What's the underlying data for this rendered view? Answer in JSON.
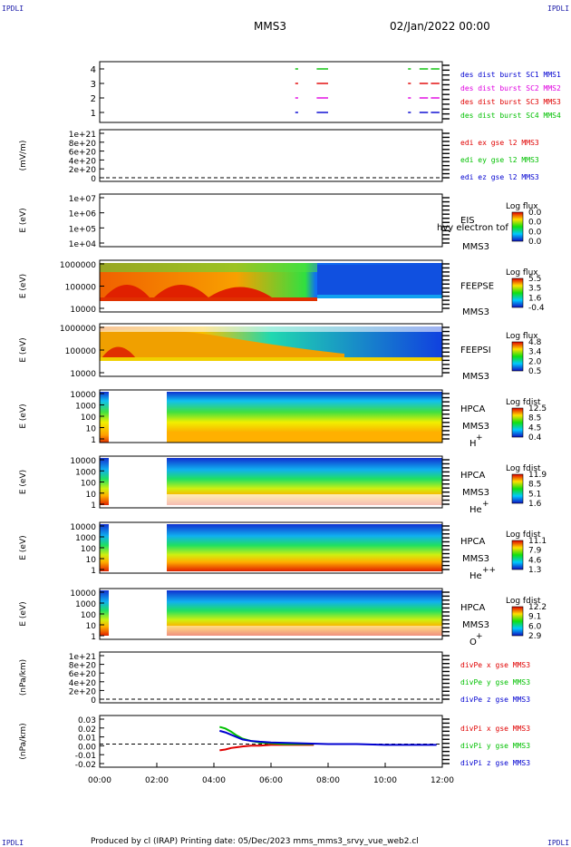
{
  "corners": {
    "tl": "IPDLI",
    "tr": "IPDLI",
    "bl": "IPDLI",
    "br": "IPDLI"
  },
  "header": {
    "title": "MMS3",
    "date": "02/Jan/2022 00:00"
  },
  "footer": {
    "text": "Produced by cl (IRAP)   Printing date: 05/Dec/2023   mms_mms3_srvy_vue_web2.cl"
  },
  "colors": {
    "red": "#e00000",
    "magenta": "#e000e0",
    "green": "#00c000",
    "blue": "#0000d0"
  },
  "chart_data": [
    {
      "type": "timeline",
      "panel": "burst",
      "x_ticks": [
        "00:00",
        "02:00",
        "04:00",
        "06:00",
        "08:00",
        "10:00",
        "12:00"
      ],
      "y_ticks": [
        "1",
        "2",
        "3",
        "4"
      ],
      "legend": [
        {
          "label": "des dist burst SC1 MMS1",
          "color": "#0000d0"
        },
        {
          "label": "des dist burst SC2 MMS2",
          "color": "#e000e0"
        },
        {
          "label": "des dist burst SC3 MMS3",
          "color": "#e00000"
        },
        {
          "label": "des dist burst SC4 MMS4",
          "color": "#00c000"
        }
      ],
      "segments": [
        {
          "sc": 1,
          "t": [
            6.85,
            6.95
          ]
        },
        {
          "sc": 1,
          "t": [
            7.6,
            8.0
          ]
        },
        {
          "sc": 1,
          "t": [
            10.8,
            10.9
          ]
        },
        {
          "sc": 1,
          "t": [
            11.2,
            11.5
          ]
        },
        {
          "sc": 1,
          "t": [
            11.6,
            11.9
          ]
        },
        {
          "sc": 2,
          "t": [
            6.85,
            6.95
          ]
        },
        {
          "sc": 2,
          "t": [
            7.6,
            8.0
          ]
        },
        {
          "sc": 2,
          "t": [
            10.8,
            10.9
          ]
        },
        {
          "sc": 2,
          "t": [
            11.2,
            11.5
          ]
        },
        {
          "sc": 2,
          "t": [
            11.6,
            11.9
          ]
        },
        {
          "sc": 3,
          "t": [
            6.85,
            6.95
          ]
        },
        {
          "sc": 3,
          "t": [
            7.6,
            8.0
          ]
        },
        {
          "sc": 3,
          "t": [
            10.8,
            10.9
          ]
        },
        {
          "sc": 3,
          "t": [
            11.2,
            11.5
          ]
        },
        {
          "sc": 3,
          "t": [
            11.6,
            11.9
          ]
        },
        {
          "sc": 4,
          "t": [
            6.85,
            6.95
          ]
        },
        {
          "sc": 4,
          "t": [
            7.6,
            8.0
          ]
        },
        {
          "sc": 4,
          "t": [
            10.8,
            10.9
          ]
        },
        {
          "sc": 4,
          "t": [
            11.2,
            11.5
          ]
        },
        {
          "sc": 4,
          "t": [
            11.6,
            11.9
          ]
        }
      ]
    },
    {
      "type": "line",
      "panel": "edi",
      "ylabel": "(mV/m)",
      "y_ticks": [
        "1e+21",
        "8e+20",
        "6e+20",
        "4e+20",
        "2e+20",
        "0"
      ],
      "legend": [
        {
          "label": "edi ex gse l2 MMS3",
          "color": "#e00000"
        },
        {
          "label": "edi ey gse l2 MMS3",
          "color": "#00c000"
        },
        {
          "label": "edi ez gse l2 MMS3",
          "color": "#0000d0"
        }
      ]
    },
    {
      "type": "heatmap",
      "panel": "eis",
      "ylabel": "E (eV)",
      "y_ticks": [
        "1e+07",
        "1e+06",
        "1e+05",
        "1e+04"
      ],
      "instrument": "EIS",
      "spacecraft": "MMS3",
      "overlay": "hvy electron tof",
      "colorbar": {
        "title": "Log flux",
        "ticks": [
          "0.0",
          "0.0",
          "0.0",
          "0.0"
        ]
      }
    },
    {
      "type": "heatmap",
      "panel": "feepse",
      "ylabel": "E (eV)",
      "y_ticks": [
        "1000000",
        "100000",
        "10000"
      ],
      "instrument": "FEEPSE",
      "spacecraft": "MMS3",
      "colorbar": {
        "title": "Log flux",
        "ticks": [
          "5.5",
          "3.5",
          "1.6",
          "-0.4"
        ]
      }
    },
    {
      "type": "heatmap",
      "panel": "feepsi",
      "ylabel": "E (eV)",
      "y_ticks": [
        "1000000",
        "100000",
        "10000"
      ],
      "instrument": "FEEPSI",
      "spacecraft": "MMS3",
      "colorbar": {
        "title": "Log flux",
        "ticks": [
          "4.8",
          "3.4",
          "2.0",
          "0.5"
        ]
      }
    },
    {
      "type": "heatmap",
      "panel": "hpca_h",
      "ylabel": "E (eV)",
      "y_ticks": [
        "10000",
        "1000",
        "100",
        "10",
        "1"
      ],
      "instrument": "HPCA",
      "spacecraft": "MMS3",
      "species": "H",
      "species_sup": "+",
      "colorbar": {
        "title": "Log fdist",
        "ticks": [
          "12.5",
          "8.5",
          "4.5",
          "0.4"
        ]
      }
    },
    {
      "type": "heatmap",
      "panel": "hpca_he",
      "ylabel": "E (eV)",
      "y_ticks": [
        "10000",
        "1000",
        "100",
        "10",
        "1"
      ],
      "instrument": "HPCA",
      "spacecraft": "MMS3",
      "species": "He",
      "species_sup": "+",
      "colorbar": {
        "title": "Log fdist",
        "ticks": [
          "11.9",
          "8.5",
          "5.1",
          "1.6"
        ]
      }
    },
    {
      "type": "heatmap",
      "panel": "hpca_he2",
      "ylabel": "E (eV)",
      "y_ticks": [
        "10000",
        "1000",
        "100",
        "10",
        "1"
      ],
      "instrument": "HPCA",
      "spacecraft": "MMS3",
      "species": "He",
      "species_sup": "++",
      "colorbar": {
        "title": "Log fdist",
        "ticks": [
          "11.1",
          "7.9",
          "4.6",
          "1.3"
        ]
      }
    },
    {
      "type": "heatmap",
      "panel": "hpca_o",
      "ylabel": "E (eV)",
      "y_ticks": [
        "10000",
        "1000",
        "100",
        "10",
        "1"
      ],
      "instrument": "HPCA",
      "spacecraft": "MMS3",
      "species": "O",
      "species_sup": "+",
      "colorbar": {
        "title": "Log fdist",
        "ticks": [
          "12.2",
          "9.1",
          "6.0",
          "2.9"
        ]
      }
    },
    {
      "type": "line",
      "panel": "divpe",
      "ylabel": "(nPa/km)",
      "y_ticks": [
        "1e+21",
        "8e+20",
        "6e+20",
        "4e+20",
        "2e+20",
        "0"
      ],
      "legend": [
        {
          "label": "divPe x gse MMS3",
          "color": "#e00000"
        },
        {
          "label": "divPe y gse MMS3",
          "color": "#00c000"
        },
        {
          "label": "divPe z gse MMS3",
          "color": "#0000d0"
        }
      ]
    },
    {
      "type": "line",
      "panel": "divpi",
      "ylabel": "(nPa/km)",
      "y_ticks": [
        "0.03",
        "0.02",
        "0.01",
        "0.00",
        "-0.01",
        "-0.02"
      ],
      "ylim": [
        -0.025,
        0.032
      ],
      "x_ticks": [
        "00:00",
        "02:00",
        "04:00",
        "06:00",
        "08:00",
        "10:00",
        "12:00"
      ],
      "legend": [
        {
          "label": "divPi x gse MMS3",
          "color": "#e00000"
        },
        {
          "label": "divPi y gse MMS3",
          "color": "#00c000"
        },
        {
          "label": "divPi z gse MMS3",
          "color": "#0000d0"
        }
      ],
      "series": [
        {
          "name": "divPi x gse MMS3",
          "color": "#e00000",
          "x": [
            4.2,
            4.4,
            4.6,
            4.8,
            5.0,
            5.3,
            5.6,
            6.0,
            6.5,
            7.0,
            7.5
          ],
          "y": [
            -0.008,
            -0.007,
            -0.005,
            -0.004,
            -0.003,
            -0.002,
            -0.002,
            -0.001,
            -0.001,
            -0.001,
            -0.001
          ]
        },
        {
          "name": "divPi y gse MMS3",
          "color": "#00c000",
          "x": [
            4.2,
            4.4,
            4.6,
            4.8,
            5.0,
            5.3,
            5.6,
            6.0,
            6.5,
            7.0,
            7.5
          ],
          "y": [
            0.022,
            0.02,
            0.016,
            0.011,
            0.007,
            0.004,
            0.002,
            0.001,
            0.0,
            0.0,
            0.0
          ]
        },
        {
          "name": "divPi z gse MMS3",
          "color": "#0000d0",
          "x": [
            4.2,
            4.4,
            4.6,
            4.8,
            5.0,
            5.3,
            5.6,
            6.0,
            7.0,
            8.0,
            9.0,
            10.0,
            11.0,
            11.8
          ],
          "y": [
            0.017,
            0.015,
            0.012,
            0.009,
            0.006,
            0.004,
            0.003,
            0.002,
            0.001,
            0.0,
            0.0,
            -0.001,
            -0.001,
            -0.001
          ]
        }
      ]
    }
  ]
}
